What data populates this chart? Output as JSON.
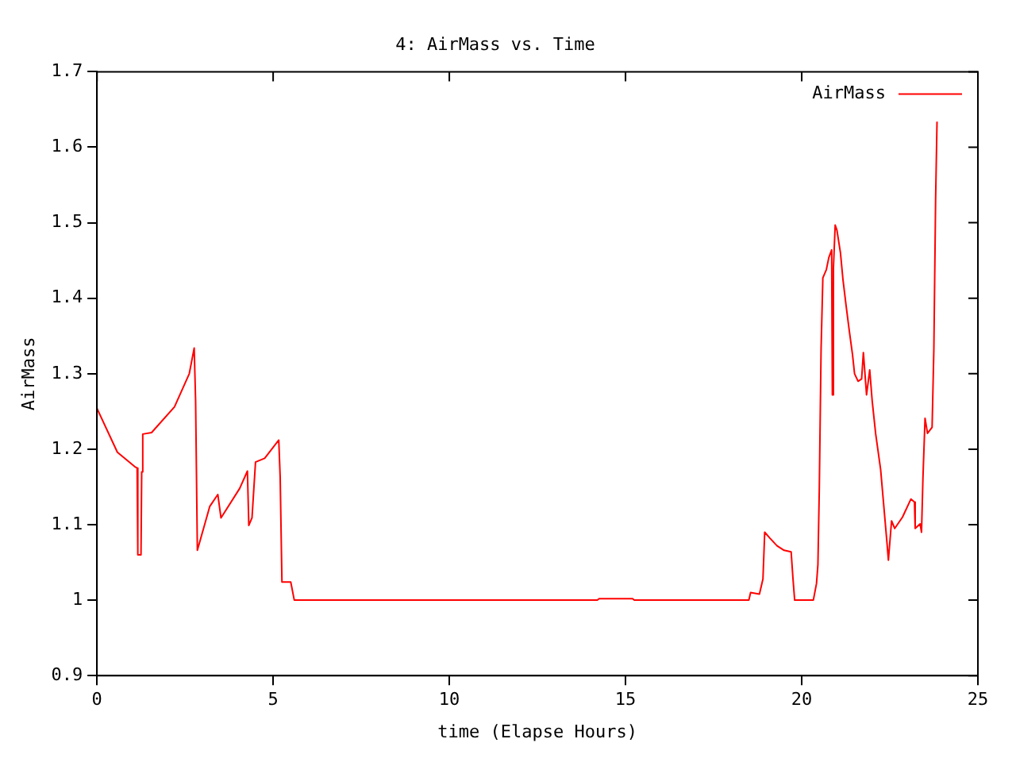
{
  "chart_data": {
    "type": "line",
    "title": "4: AirMass vs. Time",
    "xlabel": "time (Elapse Hours)",
    "ylabel": "AirMass",
    "legend": "top right",
    "grid": false,
    "marker": "none",
    "line_style": "solid",
    "xlim": [
      0,
      25
    ],
    "xticks": [
      0,
      5,
      10,
      15,
      20,
      25
    ],
    "ylim": [
      0.9,
      1.7
    ],
    "yticks": [
      0.9,
      1,
      1.1,
      1.2,
      1.3,
      1.4,
      1.5,
      1.6,
      1.7
    ],
    "series": [
      {
        "name": "AirMass",
        "color": "#ff0000",
        "x": [
          0,
          0.58,
          1.07,
          1.14,
          1.16,
          1.25,
          1.27,
          1.3,
          1.55,
          2.2,
          2.62,
          2.76,
          2.8,
          2.85,
          3.2,
          3.43,
          3.52,
          4.05,
          4.27,
          4.31,
          4.4,
          4.5,
          4.76,
          5.16,
          5.2,
          5.25,
          5.5,
          5.6,
          14.2,
          14.25,
          15.2,
          15.25,
          18.5,
          18.55,
          18.8,
          18.9,
          18.95,
          19.1,
          19.3,
          19.5,
          19.7,
          19.75,
          19.8,
          20.33,
          20.42,
          20.46,
          20.5,
          20.55,
          20.6,
          20.7,
          20.77,
          20.85,
          20.87,
          20.9,
          20.95,
          21.0,
          21.1,
          21.17,
          21.26,
          21.35,
          21.44,
          21.5,
          21.6,
          21.7,
          21.75,
          21.84,
          21.93,
          22.0,
          22.1,
          22.24,
          22.42,
          22.46,
          22.55,
          22.64,
          22.86,
          23.1,
          23.2,
          23.22,
          23.36,
          23.4,
          23.44,
          23.5,
          23.57,
          23.7,
          23.75,
          23.8,
          23.84
        ],
        "values": [
          1.254,
          1.196,
          1.177,
          1.175,
          1.06,
          1.06,
          1.17,
          1.22,
          1.222,
          1.256,
          1.3,
          1.334,
          1.264,
          1.066,
          1.124,
          1.14,
          1.109,
          1.148,
          1.171,
          1.099,
          1.109,
          1.183,
          1.188,
          1.212,
          1.163,
          1.024,
          1.024,
          1.0,
          1.0,
          1.002,
          1.002,
          1.0,
          1.0,
          1.01,
          1.008,
          1.028,
          1.09,
          1.082,
          1.072,
          1.066,
          1.064,
          1.03,
          1.0,
          1.0,
          1.022,
          1.047,
          1.15,
          1.333,
          1.427,
          1.438,
          1.454,
          1.464,
          1.272,
          1.44,
          1.497,
          1.49,
          1.46,
          1.425,
          1.39,
          1.357,
          1.326,
          1.3,
          1.29,
          1.293,
          1.328,
          1.272,
          1.305,
          1.264,
          1.22,
          1.173,
          1.076,
          1.053,
          1.105,
          1.095,
          1.11,
          1.134,
          1.13,
          1.095,
          1.101,
          1.09,
          1.161,
          1.241,
          1.221,
          1.229,
          1.332,
          1.531,
          1.634
        ]
      }
    ]
  }
}
